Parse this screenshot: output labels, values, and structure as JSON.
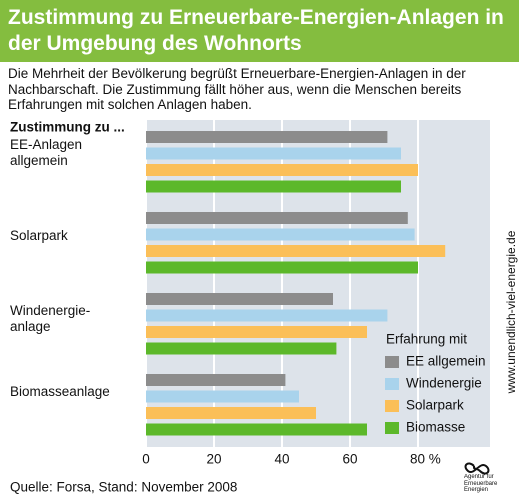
{
  "chart_data": {
    "type": "barh",
    "title": "Zustimmung zu Erneuerbare-Energien-Anlagen in der Umgebung des Wohnorts",
    "subtitle": "Die Mehrheit der Bevölkerung begrüßt Erneuerbare-Energien-Anlagen in der Nachbarschaft. Die Zustimmung fällt höher aus, wenn die Menschen bereits Erfahrungen mit solchen Anlagen haben.",
    "y_label": "Zustimmung zu ...",
    "categories": [
      "EE-Anlagen allgemein",
      "Solarpark",
      "Windenergie-anlage",
      "Biomasseanlage"
    ],
    "legend_title": "Erfahrung mit",
    "series": [
      {
        "name": "EE allgemein",
        "color": "#8c8c8c",
        "values": [
          71,
          77,
          55,
          41
        ]
      },
      {
        "name": "Windenergie",
        "color": "#a9d3ec",
        "values": [
          75,
          79,
          71,
          45
        ]
      },
      {
        "name": "Solarpark",
        "color": "#fbbf58",
        "values": [
          80,
          88,
          65,
          50
        ]
      },
      {
        "name": "Biomasse",
        "color": "#5cb82a",
        "values": [
          75,
          80,
          56,
          65
        ]
      }
    ],
    "xlim": [
      0,
      100
    ],
    "xticks": [
      0,
      20,
      40,
      60,
      {
        "value": 80,
        "label": "80 %"
      }
    ],
    "grid": true,
    "source": "Quelle: Forsa, Stand: November 2008",
    "side_text": "www.unendlich-viel-energie.de",
    "logo_text": "Agentur für Erneuerbare Energien"
  }
}
